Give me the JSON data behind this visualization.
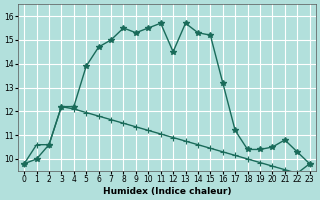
{
  "xlabel": "Humidex (Indice chaleur)",
  "background_color": "#b2e0dc",
  "grid_color": "#ffffff",
  "line_color": "#1a6b5a",
  "x_line1": [
    0,
    1,
    2,
    3,
    4,
    5,
    6,
    7,
    8,
    9,
    10,
    11,
    12,
    13,
    14,
    15,
    16,
    17,
    18,
    19,
    20,
    21,
    22,
    23
  ],
  "y_line1": [
    9.8,
    10.0,
    10.6,
    12.2,
    12.2,
    13.9,
    14.7,
    15.0,
    15.5,
    15.3,
    15.5,
    15.7,
    14.5,
    15.7,
    15.3,
    15.2,
    13.2,
    11.2,
    10.4,
    10.4,
    10.5,
    10.8,
    10.3,
    9.8
  ],
  "x_line2": [
    0,
    1,
    2,
    3,
    4,
    5,
    6,
    7,
    8,
    9,
    10,
    11,
    12,
    13,
    14,
    15,
    16,
    17,
    18,
    19,
    20,
    21,
    22,
    23
  ],
  "y_line2": [
    9.8,
    10.6,
    10.6,
    12.2,
    12.1,
    11.95,
    11.8,
    11.65,
    11.5,
    11.35,
    11.2,
    11.05,
    10.9,
    10.75,
    10.6,
    10.45,
    10.3,
    10.15,
    10.0,
    9.85,
    9.7,
    9.55,
    9.4,
    9.8
  ],
  "ylim": [
    9.5,
    16.5
  ],
  "yticks": [
    10,
    11,
    12,
    13,
    14,
    15,
    16
  ],
  "xticks": [
    0,
    1,
    2,
    3,
    4,
    5,
    6,
    7,
    8,
    9,
    10,
    11,
    12,
    13,
    14,
    15,
    16,
    17,
    18,
    19,
    20,
    21,
    22,
    23
  ]
}
